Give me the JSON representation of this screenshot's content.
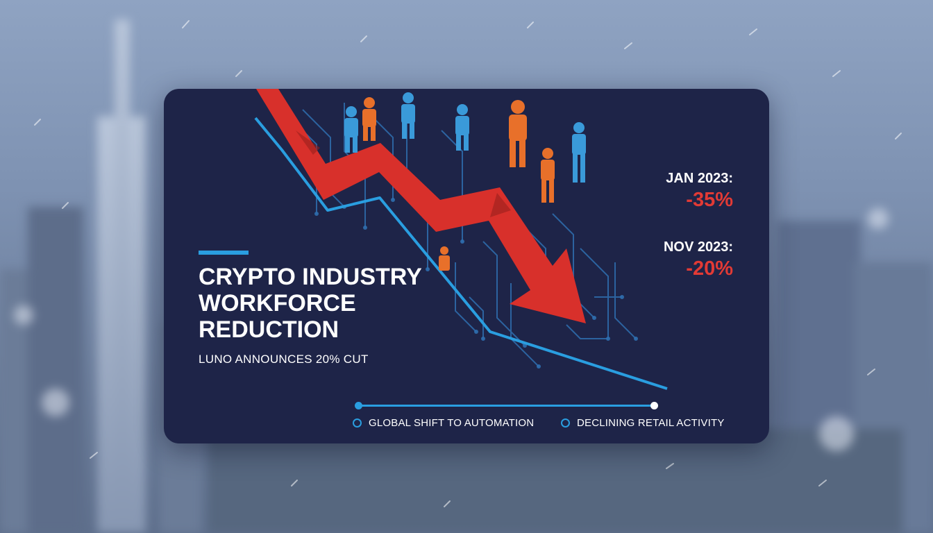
{
  "headline": {
    "title": "CRYPTO INDUSTRY WORKFORCE REDUCTION",
    "subtitle": "LUNO ANNOUNCES 20% CUT"
  },
  "stats": [
    {
      "label": "JAN 2023:",
      "value": "-35%"
    },
    {
      "label": "NOV 2023:",
      "value": "-20%"
    }
  ],
  "legend": [
    {
      "label": "GLOBAL SHIFT TO AUTOMATION"
    },
    {
      "label": "DECLINING RETAIL ACTIVITY"
    }
  ],
  "colors": {
    "card_background": "#1e2448",
    "accent_blue": "#2a9ee0",
    "decline_red": "#e23a35",
    "figure_orange": "#e8702a",
    "figure_blue": "#3a9ad9",
    "text": "#ffffff"
  },
  "icons": [
    "down-trend-arrow",
    "circuit-lines",
    "person-figures",
    "timeline-dot",
    "ring-bullet"
  ]
}
